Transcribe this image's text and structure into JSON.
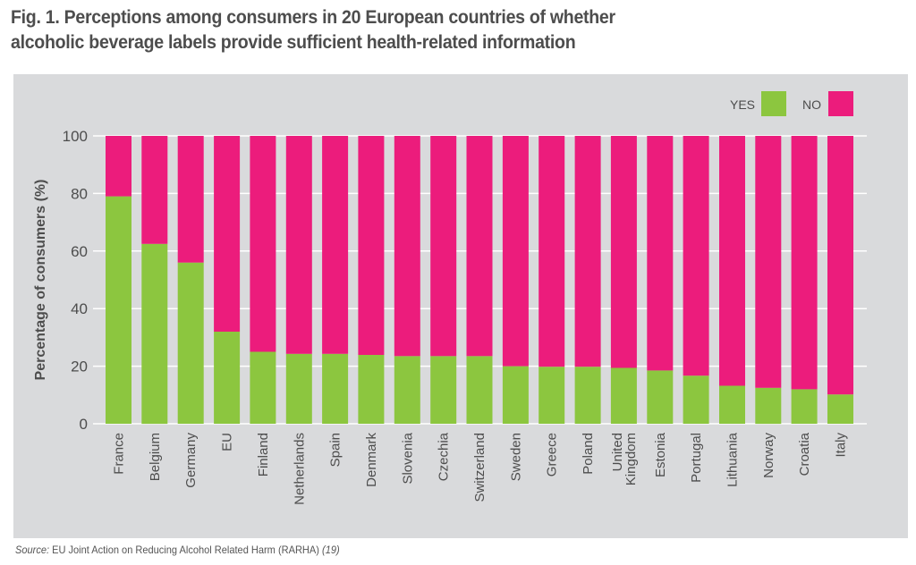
{
  "title": "Fig. 1. Perceptions among consumers in 20 European countries of whether alcoholic beverage labels provide sufficient health-related information",
  "title_lines": [
    "Fig. 1. Perceptions among consumers in 20 European countries of whether",
    "alcoholic beverage labels provide sufficient health-related information"
  ],
  "source": {
    "label": "Source:",
    "text": " EU Joint Action on Reducing Alcohol Related Harm (RARHA) ",
    "ref": "(19)"
  },
  "colors": {
    "yes": "#8cc63f",
    "no": "#ec1c7c",
    "panel": "#d9dadc",
    "grid": "#ffffff",
    "text": "#4d4d4d"
  },
  "chart_data": {
    "type": "bar",
    "stacked": true,
    "percent_stacked": true,
    "title": "Fig. 1. Perceptions among consumers in 20 European countries of whether alcoholic beverage labels provide sufficient health-related information",
    "xlabel": "",
    "ylabel": "Percentage of consumers (%)",
    "ylim": [
      0,
      100
    ],
    "yticks": [
      0,
      20,
      40,
      60,
      80,
      100
    ],
    "grid": true,
    "legend_position": "top-right",
    "categories": [
      "France",
      "Belgium",
      "Germany",
      "EU",
      "Finland",
      "Netherlands",
      "Spain",
      "Denmark",
      "Slovenia",
      "Czechia",
      "Switzerland",
      "Sweden",
      "Greece",
      "Poland",
      "United Kingdom",
      "Estonia",
      "Portugal",
      "Lithuania",
      "Norway",
      "Croatia",
      "Italy"
    ],
    "category_label_lines": [
      [
        "France"
      ],
      [
        "Belgium"
      ],
      [
        "Germany"
      ],
      [
        "EU"
      ],
      [
        "Finland"
      ],
      [
        "Netherlands"
      ],
      [
        "Spain"
      ],
      [
        "Denmark"
      ],
      [
        "Slovenia"
      ],
      [
        "Czechia"
      ],
      [
        "Switzerland"
      ],
      [
        "Sweden"
      ],
      [
        "Greece"
      ],
      [
        "Poland"
      ],
      [
        "United",
        "Kingdom"
      ],
      [
        "Estonia"
      ],
      [
        "Portugal"
      ],
      [
        "Lithuania"
      ],
      [
        "Norway"
      ],
      [
        "Croatia"
      ],
      [
        "Italy"
      ]
    ],
    "series": [
      {
        "name": "YES",
        "color": "#8cc63f",
        "values": [
          79,
          62.5,
          56,
          32,
          25,
          24.3,
          24.3,
          23.9,
          23.5,
          23.5,
          23.5,
          20,
          19.8,
          19.8,
          19.4,
          18.5,
          16.7,
          13.2,
          12.5,
          12,
          10.2
        ]
      },
      {
        "name": "NO",
        "color": "#ec1c7c",
        "values": [
          21,
          37.5,
          44,
          68,
          75,
          75.7,
          75.7,
          76.1,
          76.5,
          76.5,
          76.5,
          80,
          80.2,
          80.2,
          80.6,
          81.5,
          83.3,
          86.8,
          87.5,
          88,
          89.8
        ]
      }
    ]
  }
}
